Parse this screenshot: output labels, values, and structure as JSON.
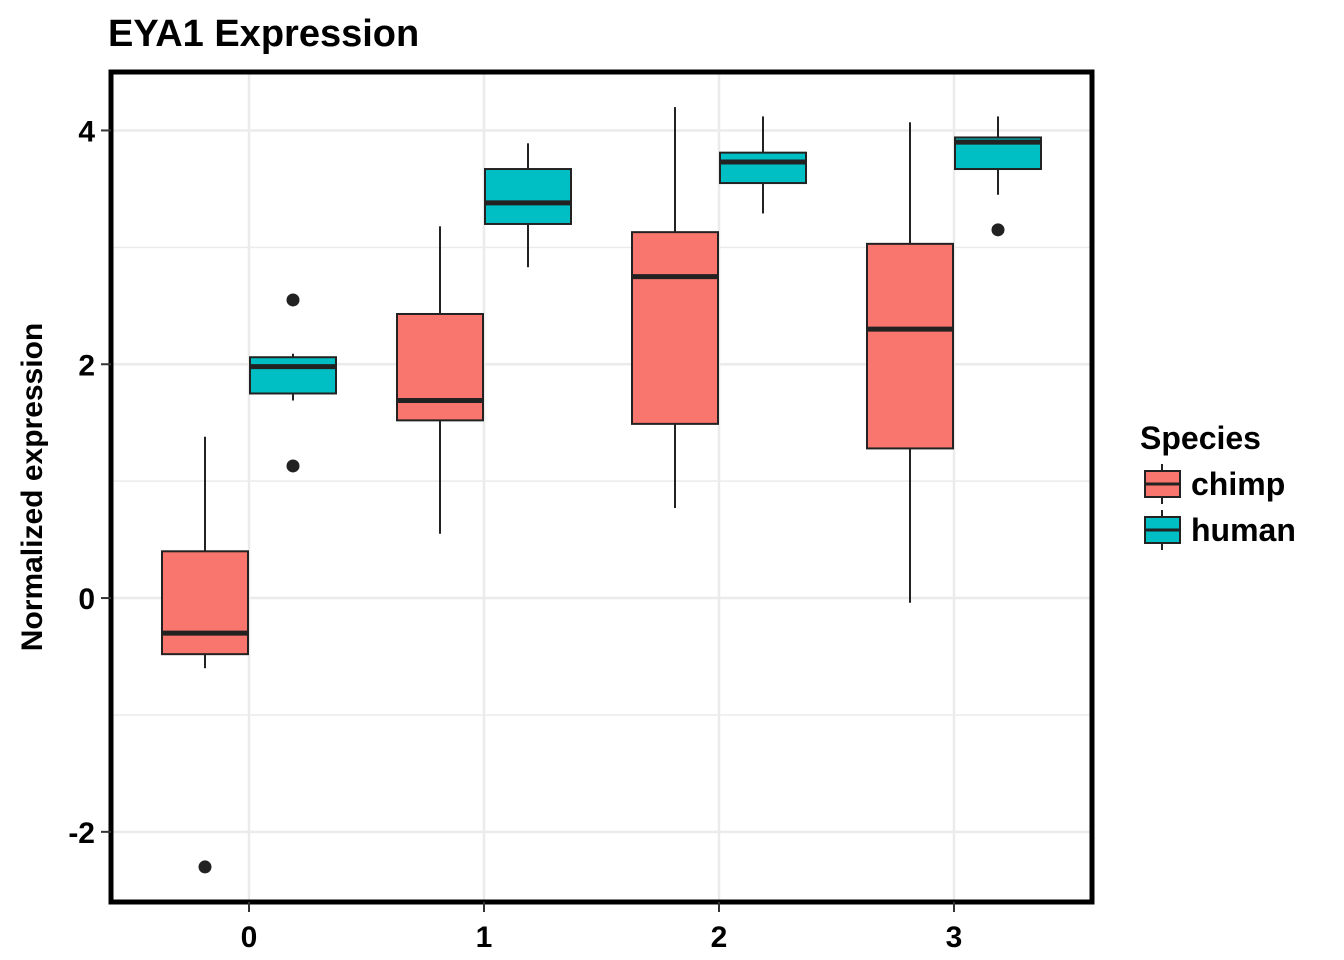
{
  "chart_data": {
    "type": "box",
    "title": "EYA1 Expression",
    "xlabel": "",
    "ylabel": "Normalized expression",
    "categories": [
      "0",
      "1",
      "2",
      "3"
    ],
    "ylim": [
      -2.6,
      4.5
    ],
    "y_ticks": [
      "-2",
      "0",
      "2",
      "4"
    ],
    "grid": true,
    "legend": {
      "title": "Species",
      "position": "right"
    },
    "series": [
      {
        "name": "chimp",
        "color": "#F8766D",
        "boxes": [
          {
            "category": "0",
            "whisker_low": -0.6,
            "q1": -0.48,
            "median": -0.3,
            "q3": 0.4,
            "whisker_high": 1.38,
            "outliers": [
              -2.3
            ]
          },
          {
            "category": "1",
            "whisker_low": 0.55,
            "q1": 1.52,
            "median": 1.69,
            "q3": 2.43,
            "whisker_high": 3.18,
            "outliers": []
          },
          {
            "category": "2",
            "whisker_low": 0.77,
            "q1": 1.49,
            "median": 2.75,
            "q3": 3.13,
            "whisker_high": 4.2,
            "outliers": []
          },
          {
            "category": "3",
            "whisker_low": -0.04,
            "q1": 1.28,
            "median": 2.3,
            "q3": 3.03,
            "whisker_high": 4.07,
            "outliers": []
          }
        ]
      },
      {
        "name": "human",
        "color": "#00BFC4",
        "boxes": [
          {
            "category": "0",
            "whisker_low": 1.69,
            "q1": 1.75,
            "median": 1.98,
            "q3": 2.06,
            "whisker_high": 2.09,
            "outliers": [
              2.55,
              1.13
            ]
          },
          {
            "category": "1",
            "whisker_low": 2.83,
            "q1": 3.2,
            "median": 3.38,
            "q3": 3.67,
            "whisker_high": 3.89,
            "outliers": []
          },
          {
            "category": "2",
            "whisker_low": 3.29,
            "q1": 3.55,
            "median": 3.73,
            "q3": 3.81,
            "whisker_high": 4.12,
            "outliers": []
          },
          {
            "category": "3",
            "whisker_low": 3.45,
            "q1": 3.67,
            "median": 3.9,
            "q3": 3.94,
            "whisker_high": 4.12,
            "outliers": [
              3.15
            ]
          }
        ]
      }
    ]
  }
}
